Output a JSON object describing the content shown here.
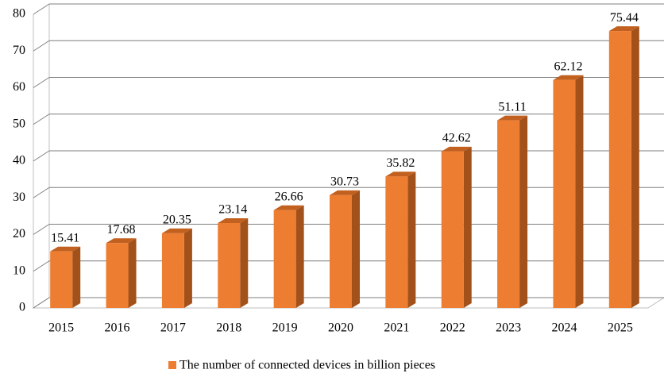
{
  "chart_data": {
    "type": "bar",
    "categories": [
      "2015",
      "2016",
      "2017",
      "2018",
      "2019",
      "2020",
      "2021",
      "2022",
      "2023",
      "2024",
      "2025"
    ],
    "series": [
      {
        "name": "The number of connected devices in billion pieces",
        "color": "#ed7d31",
        "values": [
          15.41,
          17.68,
          20.35,
          23.14,
          26.66,
          30.73,
          35.82,
          42.62,
          51.11,
          62.12,
          75.44
        ]
      }
    ],
    "ylim": [
      0,
      80
    ],
    "yticks": [
      0,
      10,
      20,
      30,
      40,
      50,
      60,
      70,
      80
    ],
    "grid": true,
    "legend": "bottom"
  }
}
